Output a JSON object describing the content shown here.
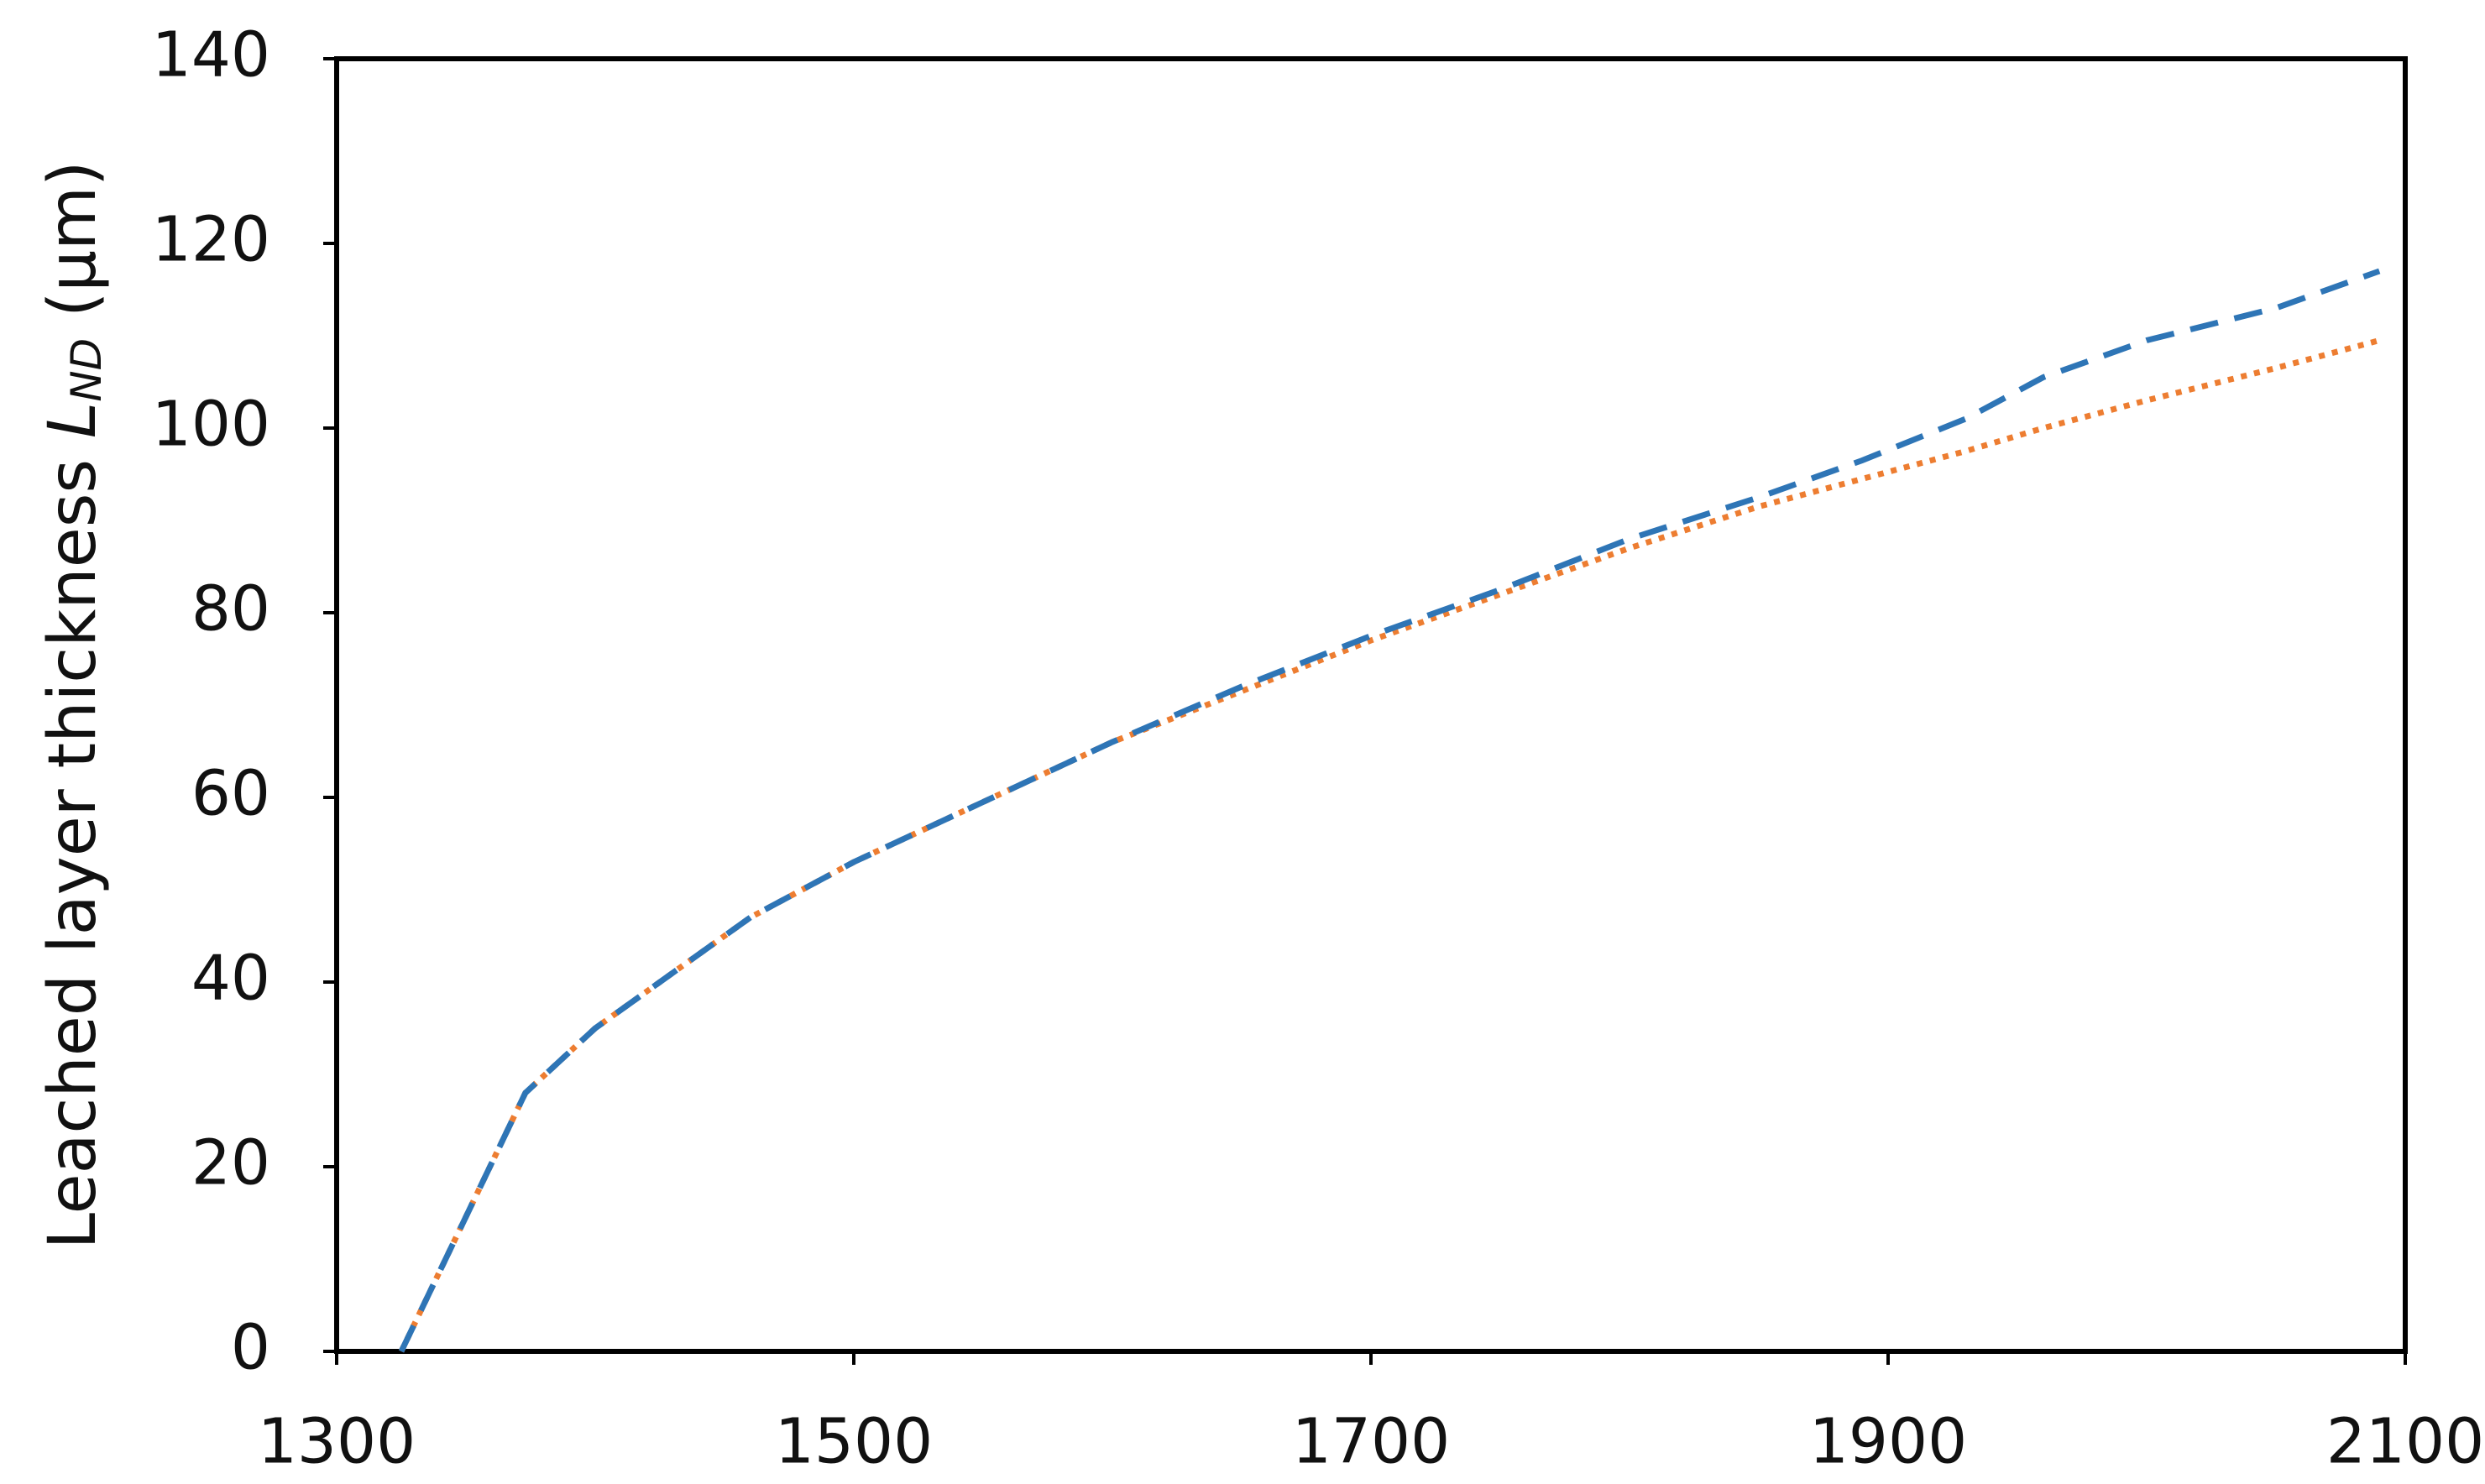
{
  "chart_data": {
    "type": "line",
    "y_label": {
      "text": "Leached layer thickness ",
      "symbol": "L",
      "subscript": "ND",
      "unit": " (μm)"
    },
    "x": [
      1325,
      1373,
      1400,
      1425,
      1460,
      1500,
      1550,
      1600,
      1650,
      1700,
      1750,
      1800,
      1850,
      1890,
      1930,
      1960,
      2000,
      2050,
      2090
    ],
    "series": [
      {
        "color": "#2e75b6",
        "dash": "dashed",
        "values": [
          0,
          28,
          35,
          40,
          47,
          53,
          59.5,
          66,
          72,
          77.5,
          82.5,
          88,
          92.5,
          96.5,
          101,
          105.5,
          109.5,
          113,
          117
        ]
      },
      {
        "color": "#ed7d31",
        "dash": "dotted",
        "values": [
          0,
          28,
          35,
          40,
          47,
          53,
          59.5,
          66,
          71.5,
          77,
          82,
          87,
          91.5,
          94.5,
          97.5,
          100,
          103,
          106.5,
          109.5
        ]
      }
    ],
    "xlim": [
      1300,
      2100
    ],
    "xticks": [
      1300,
      1500,
      1700,
      1900,
      2100
    ],
    "ylim": [
      0,
      140
    ],
    "yticks": [
      0,
      20,
      40,
      60,
      80,
      100,
      120,
      140
    ]
  }
}
